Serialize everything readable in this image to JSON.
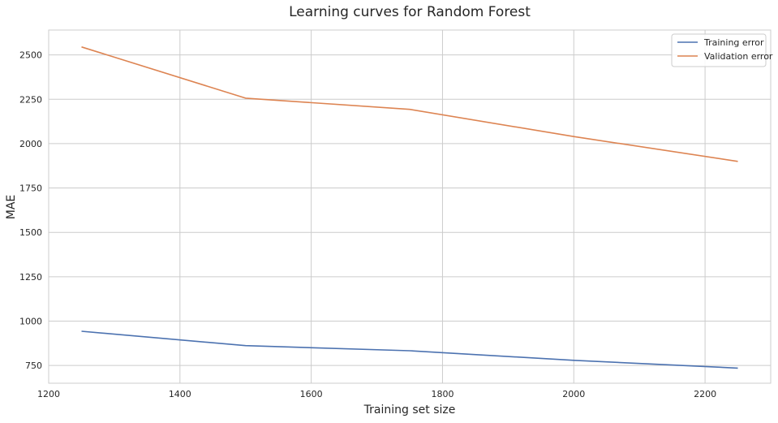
{
  "chart_data": {
    "type": "line",
    "title": "Learning curves for Random Forest",
    "xlabel": "Training set size",
    "ylabel": "MAE",
    "xlim": [
      1200,
      2300
    ],
    "ylim": [
      650,
      2640
    ],
    "xticks": [
      1200,
      1400,
      1600,
      1800,
      2000,
      2200
    ],
    "yticks": [
      750,
      1000,
      1250,
      1500,
      1750,
      2000,
      2250,
      2500
    ],
    "grid": true,
    "legend_position": "top-right",
    "x": [
      1250,
      1500,
      1750,
      2000,
      2250
    ],
    "series": [
      {
        "name": "Training error",
        "color": "#4c72b0",
        "values": [
          943,
          862,
          833,
          779,
          735
        ]
      },
      {
        "name": "Validation error",
        "color": "#dd8452",
        "values": [
          2545,
          2256,
          2193,
          2040,
          1900
        ]
      }
    ]
  }
}
